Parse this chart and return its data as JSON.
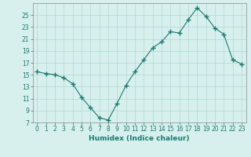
{
  "xlabel": "Humidex (Indice chaleur)",
  "x": [
    0,
    1,
    2,
    3,
    4,
    5,
    6,
    7,
    8,
    9,
    10,
    11,
    12,
    13,
    14,
    15,
    16,
    17,
    18,
    19,
    20,
    21,
    22,
    23
  ],
  "y": [
    15.5,
    15.2,
    15.0,
    14.5,
    13.5,
    11.2,
    9.5,
    7.8,
    7.4,
    10.2,
    13.2,
    15.5,
    17.5,
    19.5,
    20.5,
    22.2,
    22.0,
    24.2,
    26.2,
    24.8,
    22.8,
    21.8,
    17.5,
    16.8
  ],
  "line_color": "#1a7a6e",
  "marker": "+",
  "marker_size": 4,
  "bg_color": "#d7f0ee",
  "grid_color": "#b0d8d4",
  "axis_label_color": "#1a7a6e",
  "tick_color": "#1a7a6e",
  "ylim": [
    7,
    27
  ],
  "yticks": [
    7,
    9,
    11,
    13,
    15,
    17,
    19,
    21,
    23,
    25
  ],
  "xticks": [
    0,
    1,
    2,
    3,
    4,
    5,
    6,
    7,
    8,
    9,
    10,
    11,
    12,
    13,
    14,
    15,
    16,
    17,
    18,
    19,
    20,
    21,
    22,
    23
  ],
  "xlabel_fontsize": 6.5,
  "tick_fontsize": 5.5,
  "lw": 0.8
}
